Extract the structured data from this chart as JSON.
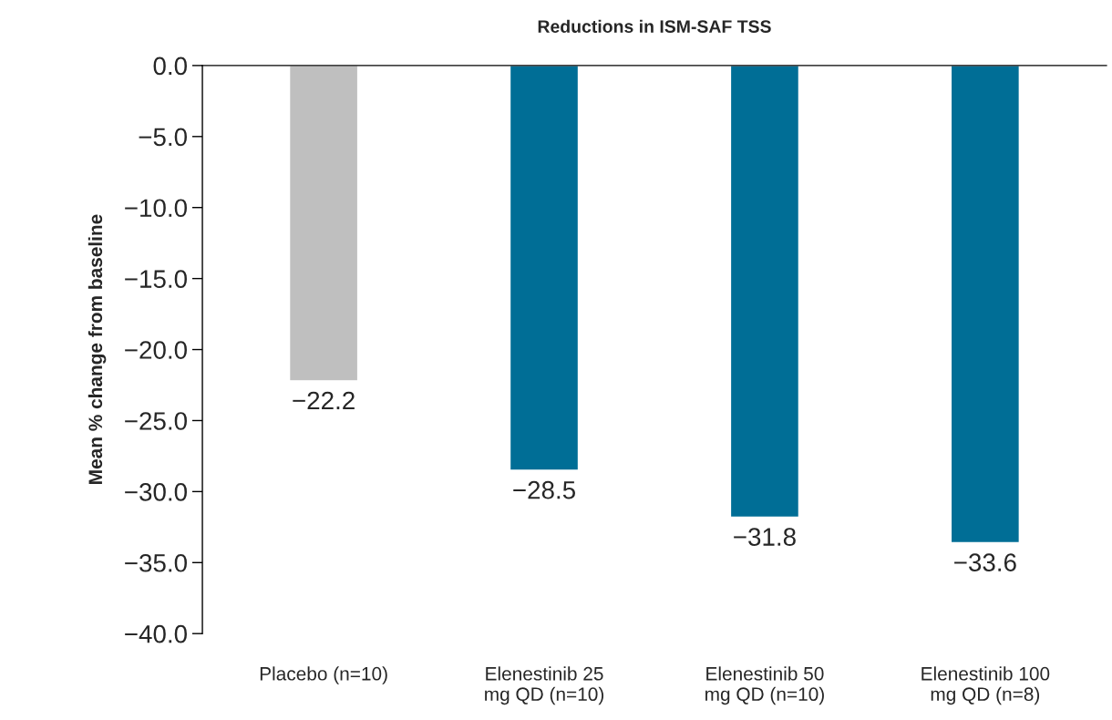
{
  "chart_data": {
    "type": "bar",
    "title": "Reductions in ISM-SAF TSS",
    "ylabel": "Mean % change from baseline",
    "categories": [
      "Placebo (n=10)",
      "Elenestinib 25 mg QD (n=10)",
      "Elenestinib 50 mg QD (n=10)",
      "Elenestinib 100 mg QD (n=8)"
    ],
    "values": [
      -22.2,
      -28.5,
      -31.8,
      -33.6
    ],
    "colors": [
      "#bfbfbf",
      "#006e96",
      "#006e96",
      "#006e96"
    ],
    "value_labels": [
      "−22.2",
      "−28.5",
      "−31.8",
      "−33.6"
    ],
    "ylim": [
      -40,
      0
    ],
    "yticks": [
      {
        "value": 0,
        "label": "0.0"
      },
      {
        "value": -5,
        "label": "−5.0"
      },
      {
        "value": -10,
        "label": "−10.0"
      },
      {
        "value": -15,
        "label": "−15.0"
      },
      {
        "value": -20,
        "label": "−20.0"
      },
      {
        "value": -25,
        "label": "−25.0"
      },
      {
        "value": -30,
        "label": "−30.0"
      },
      {
        "value": -35,
        "label": "−35.0"
      },
      {
        "value": -40,
        "label": "−40.0"
      }
    ],
    "grid": false,
    "legend": false
  }
}
